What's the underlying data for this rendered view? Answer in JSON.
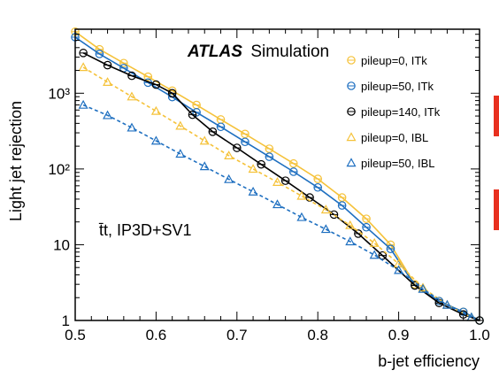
{
  "chart_data": {
    "type": "line",
    "title": "",
    "xlabel": "b-jet efficiency",
    "ylabel": "Light jet rejection",
    "xlim": [
      0.5,
      1.0
    ],
    "ylim": [
      1,
      7000
    ],
    "yscale": "log",
    "xticks": [
      "0.5",
      "0.6",
      "0.7",
      "0.8",
      "0.9",
      "1.0"
    ],
    "yticks": [
      {
        "value": 1,
        "label": "1"
      },
      {
        "value": 10,
        "label": "10"
      },
      {
        "value": 100,
        "label": "10²"
      },
      {
        "value": 1000,
        "label": "10³"
      }
    ],
    "grid": false,
    "legend_position": "top-right",
    "annotations": {
      "experiment": "ATLAS",
      "status": "Simulation",
      "process": "t̄t, IP3D+SV1"
    },
    "series": [
      {
        "name": "pileup=0, ITk",
        "color": "#f5c23a",
        "marker": "circle",
        "dashed": false,
        "x": [
          0.5,
          0.53,
          0.56,
          0.59,
          0.62,
          0.65,
          0.68,
          0.71,
          0.74,
          0.77,
          0.8,
          0.83,
          0.86,
          0.89,
          0.92,
          0.95,
          0.98,
          1.0
        ],
        "y": [
          6500,
          3800,
          2500,
          1650,
          1080,
          700,
          450,
          290,
          185,
          118,
          74,
          42,
          22,
          10,
          3.0,
          1.8,
          1.3,
          1.0
        ]
      },
      {
        "name": "pileup=50, ITk",
        "color": "#1e6fc0",
        "marker": "circle",
        "dashed": false,
        "x": [
          0.5,
          0.53,
          0.56,
          0.59,
          0.62,
          0.65,
          0.68,
          0.71,
          0.74,
          0.77,
          0.8,
          0.83,
          0.86,
          0.89,
          0.92,
          0.95,
          0.98,
          1.0
        ],
        "y": [
          5500,
          3300,
          2150,
          1380,
          890,
          560,
          360,
          228,
          145,
          92,
          57,
          33,
          17,
          8.8,
          2.9,
          1.8,
          1.3,
          1.0
        ]
      },
      {
        "name": "pileup=140, ITk",
        "color": "#000000",
        "marker": "circle",
        "dashed": false,
        "x": [
          0.51,
          0.54,
          0.57,
          0.6,
          0.62,
          0.645,
          0.67,
          0.7,
          0.73,
          0.76,
          0.79,
          0.82,
          0.85,
          0.88,
          0.92,
          0.95,
          0.98,
          1.0
        ],
        "y": [
          3400,
          2350,
          1700,
          1300,
          1000,
          520,
          310,
          190,
          115,
          70,
          42,
          25,
          14,
          7.2,
          2.9,
          1.7,
          1.2,
          1.0
        ]
      },
      {
        "name": "pileup=0, IBL",
        "color": "#f5c23a",
        "marker": "triangle",
        "dashed": true,
        "x": [
          0.51,
          0.54,
          0.57,
          0.6,
          0.63,
          0.66,
          0.69,
          0.72,
          0.75,
          0.78,
          0.81,
          0.84,
          0.87,
          0.9,
          0.93,
          0.96,
          0.99
        ],
        "y": [
          2200,
          1400,
          900,
          580,
          370,
          235,
          150,
          100,
          67,
          44,
          29,
          18,
          10.5,
          5.6,
          2.7,
          1.6,
          1.1
        ]
      },
      {
        "name": "pileup=50, IBL",
        "color": "#1e6fc0",
        "marker": "triangle",
        "dashed": true,
        "x": [
          0.51,
          0.54,
          0.57,
          0.6,
          0.63,
          0.66,
          0.69,
          0.72,
          0.75,
          0.78,
          0.81,
          0.84,
          0.87,
          0.9,
          0.93,
          0.96,
          0.99
        ],
        "y": [
          700,
          510,
          350,
          235,
          158,
          108,
          73,
          50,
          34,
          23,
          16,
          11,
          7.3,
          4.6,
          2.6,
          1.6,
          1.1
        ]
      }
    ]
  }
}
